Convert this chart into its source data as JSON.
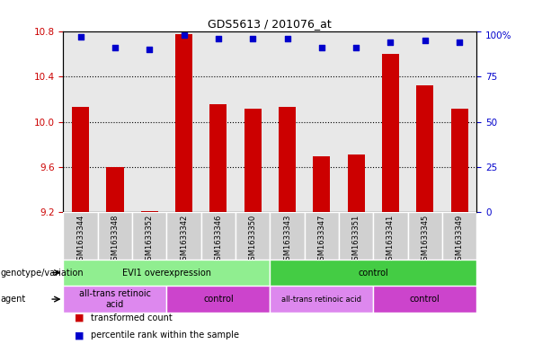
{
  "title": "GDS5613 / 201076_at",
  "samples": [
    "GSM1633344",
    "GSM1633348",
    "GSM1633352",
    "GSM1633342",
    "GSM1633346",
    "GSM1633350",
    "GSM1633343",
    "GSM1633347",
    "GSM1633351",
    "GSM1633341",
    "GSM1633345",
    "GSM1633349"
  ],
  "bar_values": [
    10.13,
    9.6,
    9.21,
    10.78,
    10.16,
    10.12,
    10.13,
    9.69,
    9.71,
    10.6,
    10.32,
    10.12
  ],
  "percentile_values": [
    97,
    91,
    90,
    98,
    96,
    96,
    96,
    91,
    91,
    94,
    95,
    94
  ],
  "ylim_left": [
    9.2,
    10.8
  ],
  "ylim_right": [
    0,
    100
  ],
  "yticks_left": [
    9.2,
    9.6,
    10.0,
    10.4,
    10.8
  ],
  "yticks_right": [
    0,
    25,
    50,
    75,
    100
  ],
  "bar_color": "#cc0000",
  "dot_color": "#0000cc",
  "bar_base": 9.2,
  "genotype_groups": [
    {
      "label": "EVI1 overexpression",
      "start": 0,
      "end": 6,
      "color": "#90ee90"
    },
    {
      "label": "control",
      "start": 6,
      "end": 12,
      "color": "#44cc44"
    }
  ],
  "agent_groups": [
    {
      "label": "all-trans retinoic\nacid",
      "start": 0,
      "end": 3,
      "color": "#dd88ee"
    },
    {
      "label": "control",
      "start": 3,
      "end": 6,
      "color": "#cc44cc"
    },
    {
      "label": "all-trans retinoic acid",
      "start": 6,
      "end": 9,
      "color": "#dd88ee"
    },
    {
      "label": "control",
      "start": 9,
      "end": 12,
      "color": "#cc44cc"
    }
  ],
  "row_labels": [
    "genotype/variation",
    "agent"
  ],
  "legend_items": [
    {
      "color": "#cc0000",
      "label": "transformed count"
    },
    {
      "color": "#0000cc",
      "label": "percentile rank within the sample"
    }
  ],
  "background_color": "#ffffff",
  "plot_bg_color": "#e8e8e8",
  "sample_bg_color": "#d0d0d0",
  "tick_color_left": "#cc0000",
  "tick_color_right": "#0000cc",
  "gridline_ticks": [
    9.6,
    10.0,
    10.4
  ],
  "right_pct_label": "100%"
}
